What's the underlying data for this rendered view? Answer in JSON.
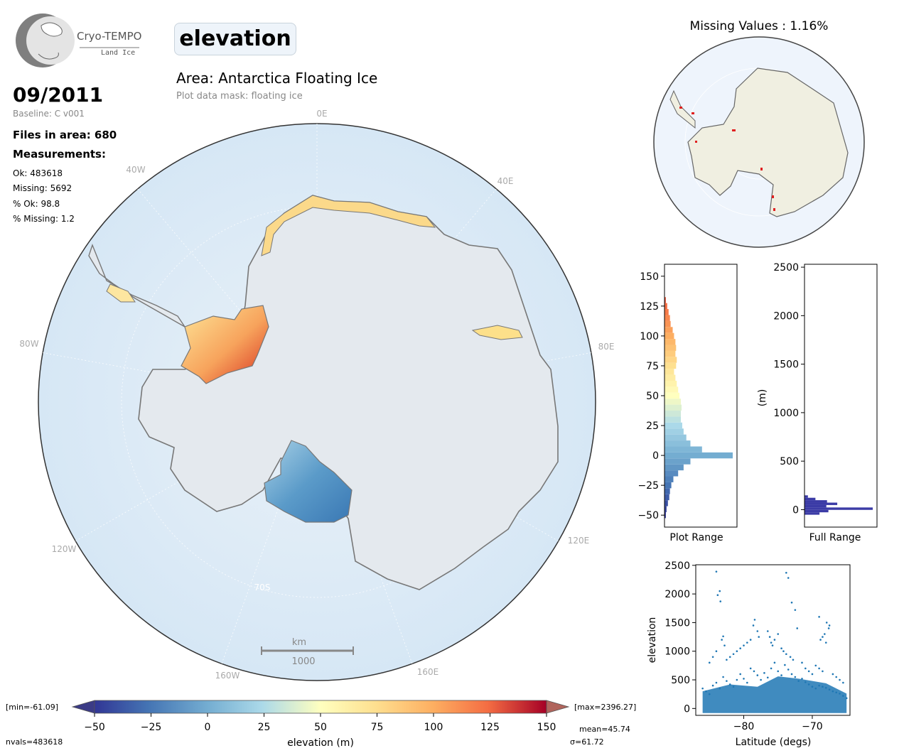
{
  "logo": {
    "name": "Cryo-TEMPO",
    "subtitle": "Land Ice"
  },
  "header": {
    "parameter": "elevation",
    "area_title": "Area: Antarctica Floating Ice",
    "mask_label": "Plot data mask: floating ice"
  },
  "info": {
    "date": "09/2011",
    "baseline": "Baseline: C v001",
    "files": "Files in area: 680",
    "measurements_heading": "Measurements:",
    "ok": "Ok: 483618",
    "missing": "Missing: 5692",
    "pct_ok": "% Ok: 98.8",
    "pct_missing": "% Missing: 1.2"
  },
  "map": {
    "lon_labels": [
      "0E",
      "40E",
      "80E",
      "120E",
      "160E",
      "160W",
      "120W",
      "80W",
      "40W"
    ],
    "lat_label": "70S",
    "scalebar_unit": "km",
    "scalebar_value": "1000"
  },
  "missing_map": {
    "title": "Missing Values : 1.16%"
  },
  "colorbar": {
    "min_label": "[min=-61.09]",
    "max_label": "[max=2396.27]",
    "ticks": [
      "−50",
      "−25",
      "0",
      "25",
      "50",
      "75",
      "100",
      "125",
      "150"
    ],
    "label": "elevation (m)",
    "nvals": "nvals=483618",
    "mean": "mean=45.74",
    "sigma": "σ=61.72"
  },
  "colors": {
    "ocean": "#d9e9f6",
    "land": "#e5e9ee",
    "coast": "#777777",
    "full_hist": "#3b3ba6",
    "scatter": "#1f77b4"
  },
  "chart_data": [
    {
      "type": "bar",
      "title": "",
      "xlabel": "Plot Range",
      "ylabel": "",
      "orientation": "horizontal",
      "ylim": [
        -60,
        160
      ],
      "yticks": [
        -50,
        -25,
        0,
        25,
        50,
        75,
        100,
        125,
        150
      ],
      "bin_centers": [
        -55,
        -50,
        -45,
        -40,
        -35,
        -30,
        -25,
        -20,
        -15,
        -10,
        -5,
        0,
        5,
        10,
        15,
        20,
        25,
        30,
        35,
        40,
        45,
        50,
        55,
        60,
        65,
        70,
        75,
        80,
        85,
        90,
        95,
        100,
        105,
        110,
        115,
        120,
        125,
        130
      ],
      "values": [
        0.0,
        0.02,
        0.03,
        0.05,
        0.07,
        0.08,
        0.1,
        0.13,
        0.2,
        0.28,
        0.38,
        1.0,
        0.55,
        0.38,
        0.32,
        0.28,
        0.26,
        0.24,
        0.24,
        0.25,
        0.24,
        0.22,
        0.2,
        0.18,
        0.16,
        0.14,
        0.17,
        0.18,
        0.16,
        0.17,
        0.16,
        0.14,
        0.12,
        0.09,
        0.08,
        0.06,
        0.04,
        0.02
      ]
    },
    {
      "type": "bar",
      "title": "",
      "xlabel": "Full Range",
      "ylabel": "(m)",
      "orientation": "horizontal",
      "ylim": [
        -180,
        2530
      ],
      "yticks": [
        0,
        500,
        1000,
        1500,
        2000,
        2500
      ],
      "bin_centers": [
        -40,
        -15,
        10,
        35,
        60,
        85,
        110,
        135
      ],
      "values": [
        0.22,
        0.35,
        1.0,
        0.32,
        0.48,
        0.33,
        0.16,
        0.05
      ]
    },
    {
      "type": "scatter",
      "title": "",
      "xlabel": "Latitude (degs)",
      "ylabel": "elevation",
      "xlim": [
        -87,
        -64.5
      ],
      "ylim": [
        -120,
        2510
      ],
      "xticks": [
        -80,
        -70
      ],
      "yticks": [
        0,
        500,
        1000,
        1500,
        2000,
        2500
      ],
      "points": [
        [
          -84.0,
          2390
        ],
        [
          -83.5,
          2050
        ],
        [
          -83.8,
          1980
        ],
        [
          -83.4,
          1870
        ],
        [
          -73.8,
          2370
        ],
        [
          -73.5,
          2280
        ],
        [
          -73.0,
          1850
        ],
        [
          -72.5,
          1720
        ],
        [
          -69.0,
          1600
        ],
        [
          -67.9,
          1500
        ],
        [
          -67.5,
          1450
        ],
        [
          -67.6,
          1400
        ],
        [
          -68.2,
          1300
        ],
        [
          -68.5,
          1250
        ],
        [
          -68.8,
          1200
        ],
        [
          -68.0,
          1150
        ],
        [
          -78.4,
          1550
        ],
        [
          -78.6,
          1450
        ],
        [
          -78.0,
          1350
        ],
        [
          -77.8,
          1250
        ],
        [
          -79.0,
          1200
        ],
        [
          -79.5,
          1150
        ],
        [
          -80.0,
          1100
        ],
        [
          -80.5,
          1050
        ],
        [
          -81.0,
          1000
        ],
        [
          -81.5,
          950
        ],
        [
          -82.0,
          900
        ],
        [
          -82.5,
          850
        ],
        [
          -83.0,
          1260
        ],
        [
          -83.2,
          1200
        ],
        [
          -82.8,
          1100
        ],
        [
          -84.0,
          1000
        ],
        [
          -84.5,
          900
        ],
        [
          -85.0,
          800
        ],
        [
          -76.5,
          1350
        ],
        [
          -76.2,
          1250
        ],
        [
          -76.0,
          1150
        ],
        [
          -75.8,
          1100
        ],
        [
          -75.5,
          1200
        ],
        [
          -75.0,
          1300
        ],
        [
          -74.5,
          1050
        ],
        [
          -74.2,
          1000
        ],
        [
          -73.8,
          950
        ],
        [
          -73.2,
          900
        ],
        [
          -72.8,
          850
        ],
        [
          -72.2,
          1400
        ],
        [
          -71.5,
          800
        ],
        [
          -71.0,
          700
        ],
        [
          -70.5,
          650
        ],
        [
          -70.0,
          600
        ],
        [
          -69.5,
          750
        ],
        [
          -69.0,
          700
        ],
        [
          -68.5,
          650
        ],
        [
          -67.0,
          600
        ],
        [
          -66.5,
          550
        ],
        [
          -66.0,
          500
        ],
        [
          -65.5,
          450
        ],
        [
          -86.0,
          350
        ],
        [
          -85.5,
          300
        ],
        [
          -85.0,
          250
        ],
        [
          -84.5,
          400
        ],
        [
          -84.0,
          450
        ],
        [
          -83.5,
          350
        ],
        [
          -83.0,
          550
        ],
        [
          -82.5,
          480
        ],
        [
          -82.0,
          420
        ],
        [
          -81.5,
          380
        ],
        [
          -81.0,
          500
        ],
        [
          -80.5,
          600
        ],
        [
          -80.0,
          520
        ],
        [
          -79.5,
          450
        ],
        [
          -79.0,
          700
        ],
        [
          -78.5,
          650
        ],
        [
          -78.0,
          580
        ],
        [
          -77.5,
          500
        ],
        [
          -77.0,
          620
        ],
        [
          -76.5,
          540
        ],
        [
          -76.0,
          700
        ],
        [
          -75.5,
          800
        ],
        [
          -75.0,
          650
        ],
        [
          -74.5,
          580
        ],
        [
          -74.0,
          760
        ],
        [
          -73.5,
          680
        ],
        [
          -73.0,
          600
        ],
        [
          -72.5,
          550
        ],
        [
          -72.0,
          480
        ],
        [
          -71.5,
          520
        ],
        [
          -71.0,
          460
        ],
        [
          -70.5,
          420
        ],
        [
          -70.0,
          380
        ],
        [
          -69.5,
          350
        ],
        [
          -69.0,
          400
        ],
        [
          -68.5,
          380
        ],
        [
          -68.0,
          360
        ],
        [
          -67.5,
          330
        ],
        [
          -67.0,
          300
        ],
        [
          -66.5,
          280
        ],
        [
          -66.0,
          260
        ],
        [
          -65.5,
          220
        ],
        [
          -65.0,
          180
        ]
      ]
    },
    {
      "type": "heatmap",
      "title": "",
      "colorbar_label": "elevation (m)",
      "vmin": -50,
      "vmax": 150
    }
  ]
}
